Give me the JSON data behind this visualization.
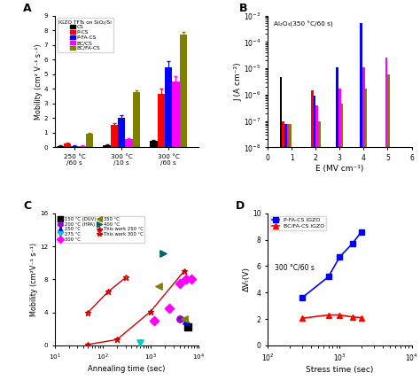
{
  "A": {
    "title": "A",
    "ylabel": "Mobility (cm² V⁻¹ s⁻¹)",
    "legend_title": "IGZO TFTs on SiO₂/Si",
    "groups": [
      "250 °C\n/60 s",
      "300 °C\n/10 s",
      "300 °C\n/60 s"
    ],
    "series": [
      "CS",
      "P-CS",
      "P-FA-CS",
      "BC/CS",
      "BC/FA-CS"
    ],
    "colors": [
      "#000000",
      "#ff0000",
      "#0000ff",
      "#ff00ff",
      "#808000"
    ],
    "values": [
      [
        0.1,
        0.25,
        0.1,
        0.1,
        0.95
      ],
      [
        0.15,
        1.55,
        2.05,
        0.6,
        3.75
      ],
      [
        0.45,
        3.65,
        5.45,
        4.5,
        7.7
      ]
    ],
    "errors": [
      [
        0.02,
        0.07,
        0.02,
        0.02,
        0.06
      ],
      [
        0.03,
        0.12,
        0.18,
        0.06,
        0.12
      ],
      [
        0.06,
        0.35,
        0.45,
        0.35,
        0.18
      ]
    ],
    "ylim": [
      0,
      9
    ],
    "yticks": [
      0,
      1,
      2,
      3,
      4,
      5,
      6,
      7,
      8,
      9
    ]
  },
  "B": {
    "title": "B",
    "xlabel": "E (MV cm⁻¹)",
    "ylabel": "J (A cm⁻²)",
    "annotation": "Al₂O₃(350 °C/60 s)",
    "color_order": [
      "black",
      "red",
      "blue",
      "magenta",
      "olive"
    ],
    "colors": {
      "black": "#000000",
      "red": "#ff0000",
      "blue": "#0000ff",
      "magenta": "#ff00ff",
      "olive": "#808000"
    },
    "x_positions": [
      0.75,
      2.0,
      3.0,
      4.0,
      5.0
    ],
    "values": {
      "black": [
        4.5e-06,
        null,
        null,
        null,
        null
      ],
      "red": [
        1e-07,
        1.5e-06,
        null,
        null,
        null
      ],
      "blue": [
        8e-08,
        9e-07,
        1.1e-05,
        0.0005,
        null
      ],
      "magenta": [
        8e-08,
        4e-07,
        1.7e-06,
        1.1e-05,
        2.5e-05
      ],
      "olive": [
        8e-08,
        1e-07,
        4.5e-07,
        1.7e-06,
        6e-06
      ]
    },
    "ylim": [
      1e-08,
      0.001
    ],
    "xlim": [
      0,
      6
    ]
  },
  "C": {
    "title": "C",
    "xlabel": "Annealing time (sec)",
    "ylabel": "Mobility (cm²V⁻¹ s⁻¹)",
    "ylim": [
      0,
      16
    ],
    "xlim": [
      10,
      10000
    ],
    "yticks": [
      0,
      4,
      8,
      12,
      16
    ],
    "scatter_series": [
      {
        "label": "150 °C (DUV)",
        "color": "#000000",
        "marker": "s",
        "x": [
          6000
        ],
        "y": [
          2.2
        ]
      },
      {
        "label": "200 °C (HPA)",
        "color": "#9900cc",
        "marker": "o",
        "x": [
          4000
        ],
        "y": [
          3.2
        ]
      },
      {
        "label": "250 °C",
        "color": "#0000ff",
        "marker": "^",
        "x": [
          5500
        ],
        "y": [
          3.0
        ]
      },
      {
        "label": "275 °C",
        "color": "#00cccc",
        "marker": "v",
        "x": [
          600
        ],
        "y": [
          0.3
        ]
      },
      {
        "label": "300 °C",
        "color": "#ff00ff",
        "marker": "D",
        "x": [
          1200,
          2500,
          4000,
          5500,
          7000
        ],
        "y": [
          3.0,
          4.5,
          7.5,
          8.0,
          8.0
        ]
      },
      {
        "label": "350 °C",
        "color": "#808000",
        "marker": "<",
        "x": [
          1500,
          5000
        ],
        "y": [
          7.2,
          3.2
        ]
      },
      {
        "label": "400 °C",
        "color": "#006666",
        "marker": ">",
        "x": [
          1800
        ],
        "y": [
          11.2
        ]
      },
      {
        "label": "This work 250 °C",
        "color": "#cc0000",
        "marker": "*",
        "x": [
          50,
          200,
          1000,
          5000
        ],
        "y": [
          0.1,
          0.7,
          4.1,
          9.0
        ],
        "line": true,
        "filled": true
      },
      {
        "label": "This work 300 °C",
        "color": "#cc0000",
        "marker": "*",
        "x": [
          50,
          130,
          300
        ],
        "y": [
          4.0,
          6.5,
          8.2
        ],
        "line": true,
        "filled": false
      }
    ]
  },
  "D": {
    "title": "D",
    "xlabel": "Stress time (sec)",
    "ylabel": "ΔVₜ(V)",
    "ylim": [
      0,
      10
    ],
    "xlim": [
      100,
      10000
    ],
    "yticks": [
      0,
      2,
      4,
      6,
      8,
      10
    ],
    "series": [
      {
        "label": "P-FA-CS IGZO",
        "color": "#0000ff",
        "marker": "s",
        "x": [
          300,
          700,
          1000,
          1500,
          2000
        ],
        "y": [
          3.6,
          5.2,
          6.7,
          7.7,
          8.6
        ]
      },
      {
        "label": "BC/FA-CS IGZO",
        "color": "#ff0000",
        "marker": "^",
        "x": [
          300,
          700,
          1000,
          1500,
          2000
        ],
        "y": [
          2.05,
          2.3,
          2.3,
          2.15,
          2.1
        ]
      }
    ],
    "annotation": "300 °C/60 s"
  }
}
